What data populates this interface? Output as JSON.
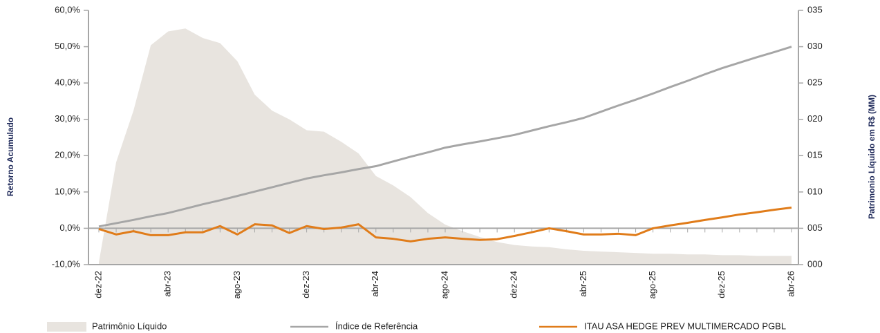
{
  "chart_data": {
    "type": "line",
    "y_label": "Retorno Acumulado",
    "y2_label": "Patrimonio Líquido em R$ (MM)",
    "categories": [
      "dez-22",
      null,
      null,
      null,
      "abr-23",
      null,
      null,
      null,
      "ago-23",
      null,
      null,
      null,
      "dez-23",
      null,
      null,
      null,
      "abr-24",
      null,
      null,
      null,
      "ago-24",
      null,
      null,
      null,
      "dez-24",
      null,
      null,
      null,
      "abr-25",
      null,
      null,
      null,
      "ago-25",
      null,
      null,
      null,
      "dez-25",
      null,
      null,
      null,
      "abr-26"
    ],
    "series": [
      {
        "name": "Patrimônio Líquido",
        "kind": "area",
        "axis": "y2",
        "color": "#e8e4df",
        "values": [
          0.3,
          14.1,
          21.2,
          30.2,
          32.1,
          32.5,
          31.2,
          30.5,
          28.0,
          23.4,
          21.2,
          20.0,
          18.5,
          18.3,
          16.9,
          15.3,
          12.2,
          10.9,
          9.3,
          7.1,
          5.5,
          4.6,
          3.8,
          3.1,
          2.7,
          2.5,
          2.4,
          2.1,
          1.9,
          1.8,
          1.7,
          1.6,
          1.5,
          1.5,
          1.4,
          1.4,
          1.3,
          1.3,
          1.2,
          1.2,
          1.2
        ]
      },
      {
        "name": "Índice de Referência",
        "kind": "line",
        "color": "#a6a6a6",
        "values": [
          0.5,
          1.4,
          2.3,
          3.3,
          4.2,
          5.4,
          6.6,
          7.7,
          8.9,
          10.1,
          11.3,
          12.5,
          13.7,
          14.6,
          15.4,
          16.3,
          17.1,
          18.4,
          19.7,
          20.9,
          22.2,
          23.1,
          23.9,
          24.8,
          25.7,
          26.9,
          28.1,
          29.2,
          30.4,
          32.1,
          33.8,
          35.4,
          37.1,
          38.9,
          40.6,
          42.4,
          44.1,
          45.6,
          47.1,
          48.5,
          50.0
        ]
      },
      {
        "name": "ITAU ASA HEDGE PREV MULTIMERCADO PGBL",
        "kind": "line",
        "color": "#e07c1a",
        "values": [
          -0.2,
          -1.7,
          -0.8,
          -1.9,
          -1.9,
          -1.1,
          -1.1,
          0.6,
          -1.7,
          1.1,
          0.8,
          -1.3,
          0.6,
          -0.2,
          0.2,
          1.1,
          -2.5,
          -2.9,
          -3.6,
          -2.9,
          -2.5,
          -2.9,
          -3.2,
          -3.0,
          -2.1,
          -1.1,
          0.0,
          -0.8,
          -1.7,
          -1.7,
          -1.5,
          -1.9,
          0.0,
          0.8,
          1.5,
          2.3,
          3.0,
          3.8,
          4.4,
          5.1,
          5.7
        ]
      }
    ],
    "ylim": [
      -10,
      60
    ],
    "yticks": [
      {
        "value": -10,
        "label": "-10,0%"
      },
      {
        "value": 0,
        "label": "0,0%"
      },
      {
        "value": 10,
        "label": "10,0%"
      },
      {
        "value": 20,
        "label": "20,0%"
      },
      {
        "value": 30,
        "label": "30,0%"
      },
      {
        "value": 40,
        "label": "40,0%"
      },
      {
        "value": 50,
        "label": "50,0%"
      },
      {
        "value": 60,
        "label": "60,0%"
      }
    ],
    "y2lim": [
      0,
      35
    ],
    "y2ticks": [
      {
        "value": 0,
        "label": "000"
      },
      {
        "value": 5,
        "label": "005"
      },
      {
        "value": 10,
        "label": "010"
      },
      {
        "value": 15,
        "label": "015"
      },
      {
        "value": 20,
        "label": "020"
      },
      {
        "value": 25,
        "label": "025"
      },
      {
        "value": 30,
        "label": "030"
      },
      {
        "value": 35,
        "label": "035"
      }
    ],
    "grid": false
  }
}
